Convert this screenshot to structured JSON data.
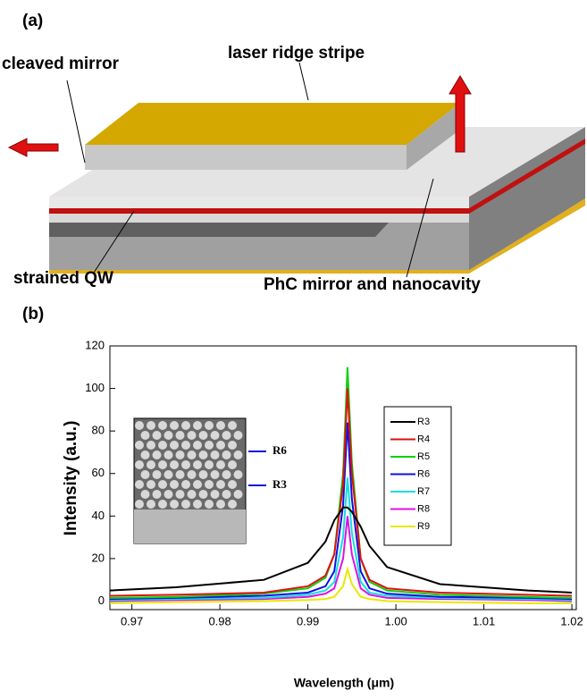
{
  "diagram": {
    "panel_label": "(a)",
    "labels": [
      "cleaved mirror",
      "laser ridge stripe",
      "strained QW",
      "PhC mirror and nanocavity"
    ]
  },
  "chart_data": {
    "type": "line",
    "panel_label": "(b)",
    "x_label": "Wavelength (μm)",
    "y_label": "Intensity (a.u.)",
    "x": [
      0.9675,
      0.975,
      0.985,
      0.99,
      0.992,
      0.993,
      0.994,
      0.9945,
      0.995,
      0.996,
      0.997,
      0.999,
      1.005,
      1.015,
      1.02
    ],
    "series": [
      {
        "name": "R3",
        "color": "#000000",
        "values": [
          5,
          6.5,
          10,
          18,
          28,
          38,
          44,
          44,
          42,
          35,
          26,
          16,
          8,
          5,
          4
        ]
      },
      {
        "name": "R4",
        "color": "#e01010",
        "values": [
          2.5,
          3,
          4,
          7,
          12,
          22,
          55,
          100,
          60,
          20,
          10,
          6,
          4,
          3,
          2.5
        ]
      },
      {
        "name": "R5",
        "color": "#10d010",
        "values": [
          1.5,
          2,
          3.5,
          6,
          11,
          22,
          60,
          110,
          65,
          20,
          9,
          5,
          3,
          2,
          1.5
        ]
      },
      {
        "name": "R6",
        "color": "#1010e0",
        "values": [
          1,
          1.5,
          2.5,
          4,
          7,
          14,
          45,
          84,
          48,
          14,
          6,
          3.5,
          2,
          1.5,
          1
        ]
      },
      {
        "name": "R7",
        "color": "#10e0e0",
        "values": [
          0.5,
          1,
          1.5,
          3,
          5,
          9,
          30,
          58,
          32,
          9,
          4,
          2.5,
          1.5,
          1,
          0.5
        ]
      },
      {
        "name": "R8",
        "color": "#e010e0",
        "values": [
          0,
          0.5,
          1,
          2,
          3.5,
          6,
          20,
          40,
          22,
          6,
          3,
          1.5,
          1,
          0.5,
          0
        ]
      },
      {
        "name": "R9",
        "color": "#e8e800",
        "values": [
          -1,
          -0.5,
          0,
          0.5,
          1,
          2,
          7,
          15,
          8,
          2,
          1,
          0,
          -0.5,
          -1,
          -1
        ]
      }
    ],
    "xlim": [
      0.9675,
      1.0205
    ],
    "ylim": [
      -4,
      120
    ],
    "xticks": [
      0.97,
      0.98,
      0.99,
      {
        "value": 1,
        "label": "1.00"
      },
      1.01,
      1.02
    ],
    "yticks": [
      0,
      20,
      40,
      60,
      80,
      100,
      120
    ],
    "inset_labels": [
      "R6",
      "R3"
    ]
  }
}
